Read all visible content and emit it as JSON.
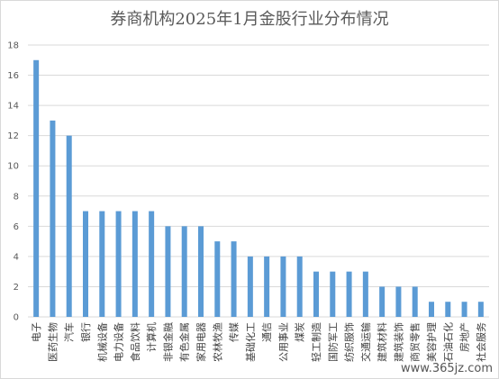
{
  "title": "券商机构2025年1月金股行业分布情况",
  "watermark": "www.365jz.com",
  "chart_data": {
    "type": "bar",
    "title": "券商机构2025年1月金股行业分布情况",
    "xlabel": "",
    "ylabel": "",
    "ylim": [
      0,
      18
    ],
    "yticks": [
      0,
      2,
      4,
      6,
      8,
      10,
      12,
      14,
      16,
      18
    ],
    "grid": true,
    "bar_color": "#5b9bd5",
    "categories": [
      "电子",
      "医药生物",
      "汽车",
      "银行",
      "机械设备",
      "电力设备",
      "食品饮料",
      "计算机",
      "非银金融",
      "有色金属",
      "家用电器",
      "农林牧渔",
      "传媒",
      "基础化工",
      "通信",
      "公用事业",
      "煤炭",
      "轻工制造",
      "国防军工",
      "纺织服饰",
      "交通运输",
      "建筑材料",
      "建筑装饰",
      "商贸零售",
      "美容护理",
      "石油石化",
      "房地产",
      "社会服务"
    ],
    "values": [
      17,
      13,
      12,
      7,
      7,
      7,
      7,
      7,
      6,
      6,
      6,
      5,
      5,
      4,
      4,
      4,
      4,
      3,
      3,
      3,
      3,
      2,
      2,
      2,
      1,
      1,
      1,
      1
    ]
  }
}
